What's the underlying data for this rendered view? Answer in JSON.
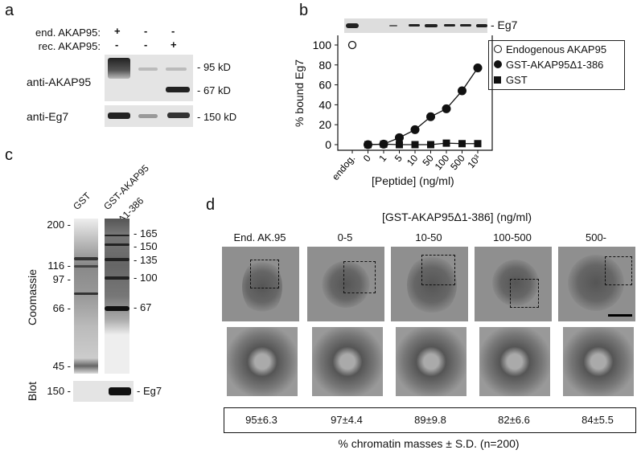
{
  "panels": {
    "a": "a",
    "b": "b",
    "c": "c",
    "d": "d"
  },
  "panel_a": {
    "row_labels": [
      "end. AKAP95:",
      "rec. AKAP95:"
    ],
    "signs": [
      [
        "+",
        "-",
        "-"
      ],
      [
        "-",
        "-",
        "+"
      ]
    ],
    "blot_labels": [
      "anti-AKAP95",
      "anti-Eg7"
    ],
    "markers": [
      "- 95 kD",
      "- 67 kD",
      "- 150 kD"
    ]
  },
  "panel_b": {
    "blot_label": "- Eg7"
  },
  "chart_data": {
    "type": "scatter",
    "xlabel": "[Peptide] (ng/ml)",
    "ylabel": "% bound Eg7",
    "categories": [
      "endog.",
      "0",
      "1",
      "5",
      "10",
      "50",
      "100",
      "500",
      "10³"
    ],
    "ylim": [
      0,
      110
    ],
    "yticks": [
      0,
      20,
      40,
      60,
      80,
      100
    ],
    "legend_position": "right",
    "series": [
      {
        "name": "Endogenous AKAP95",
        "marker": "open-circle",
        "line": false,
        "categories": [
          "endog."
        ],
        "values": [
          100
        ]
      },
      {
        "name": "GST-AKAP95Δ1-386",
        "marker": "filled-circle",
        "line": true,
        "categories": [
          "0",
          "1",
          "5",
          "10",
          "50",
          "100",
          "500",
          "10³"
        ],
        "values": [
          0,
          0.5,
          7,
          15,
          28,
          36,
          54,
          77
        ]
      },
      {
        "name": "GST",
        "marker": "filled-square",
        "line": true,
        "categories": [
          "0",
          "1",
          "5",
          "10",
          "50",
          "100",
          "500",
          "10³"
        ],
        "values": [
          0,
          0.5,
          0,
          0,
          0,
          1.5,
          1,
          1
        ]
      }
    ]
  },
  "panel_c": {
    "lanes": [
      "GST",
      "GST-AKAP95",
      "Δ1-386"
    ],
    "left_markers": [
      "200 -",
      "116 -",
      "97 -",
      "66 -",
      "45 -",
      "150 -"
    ],
    "right_markers": [
      "- 165",
      "- 150",
      "- 135",
      "- 100",
      "- 67",
      "- Eg7"
    ],
    "section_labels": [
      "Coomassie",
      "Blot"
    ]
  },
  "panel_d": {
    "title": "[GST-AKAP95Δ1-386] (ng/ml)",
    "columns": [
      "End. AK.95",
      "0-5",
      "10-50",
      "100-500",
      "500-"
    ],
    "values": [
      "95±6.3",
      "97±4.4",
      "89±9.8",
      "82±6.6",
      "84±5.5"
    ],
    "caption": "% chromatin masses ± S.D. (n=200)"
  }
}
